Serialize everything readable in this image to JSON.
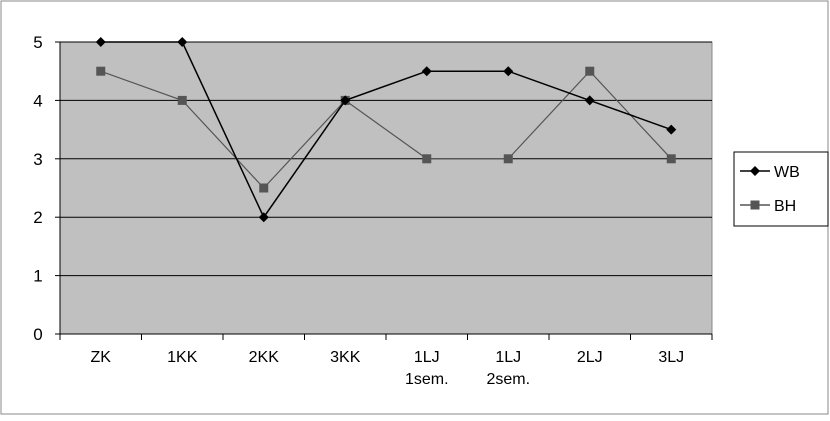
{
  "chart_data": {
    "type": "line",
    "title": "",
    "xlabel": "",
    "ylabel": "",
    "categories": [
      [
        "ZK"
      ],
      [
        "1KK"
      ],
      [
        "2KK"
      ],
      [
        "3KK"
      ],
      [
        "1LJ",
        "1sem."
      ],
      [
        "1LJ",
        "2sem."
      ],
      [
        "2LJ"
      ],
      [
        "3LJ"
      ]
    ],
    "ylim": [
      0,
      5
    ],
    "yticks": [
      0,
      1,
      2,
      3,
      4,
      5
    ],
    "grid": true,
    "legend_position": "right",
    "plot_background": "#c0c0c0",
    "series": [
      {
        "name": "WB",
        "values": [
          5,
          5,
          2,
          4,
          4.5,
          4.5,
          4,
          3.5
        ],
        "color": "#000000",
        "marker": "diamond"
      },
      {
        "name": "BH",
        "values": [
          4.5,
          4,
          2.5,
          4,
          3,
          3,
          4.5,
          3
        ],
        "color": "#555555",
        "marker": "square"
      }
    ]
  }
}
